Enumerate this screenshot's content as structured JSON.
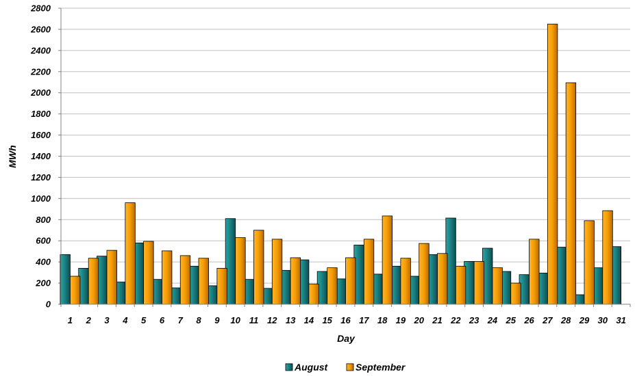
{
  "chart_data": {
    "type": "bar",
    "xlabel": "Day",
    "ylabel": "MWh",
    "ylim": [
      0,
      2800
    ],
    "yticks": [
      0,
      200,
      400,
      600,
      800,
      1000,
      1200,
      1400,
      1600,
      1800,
      2000,
      2200,
      2400,
      2600,
      2800
    ],
    "grid": true,
    "legend_position": "bottom",
    "categories": [
      "1",
      "2",
      "3",
      "4",
      "5",
      "6",
      "7",
      "8",
      "9",
      "10",
      "11",
      "12",
      "13",
      "14",
      "15",
      "16",
      "17",
      "18",
      "19",
      "20",
      "21",
      "22",
      "23",
      "24",
      "25",
      "26",
      "27",
      "28",
      "29",
      "30",
      "31"
    ],
    "series": [
      {
        "name": "August",
        "color": "#1f8a8a",
        "values": [
          470,
          340,
          455,
          210,
          580,
          235,
          155,
          360,
          175,
          810,
          235,
          150,
          320,
          420,
          310,
          240,
          560,
          285,
          360,
          265,
          470,
          815,
          405,
          530,
          310,
          280,
          295,
          540,
          90,
          345,
          545
        ]
      },
      {
        "name": "September",
        "color": "#f5a100",
        "values": [
          265,
          435,
          510,
          960,
          595,
          505,
          460,
          435,
          340,
          630,
          700,
          615,
          440,
          190,
          345,
          440,
          615,
          835,
          435,
          575,
          480,
          360,
          405,
          345,
          200,
          615,
          2650,
          2095,
          790,
          885,
          null
        ]
      }
    ]
  }
}
